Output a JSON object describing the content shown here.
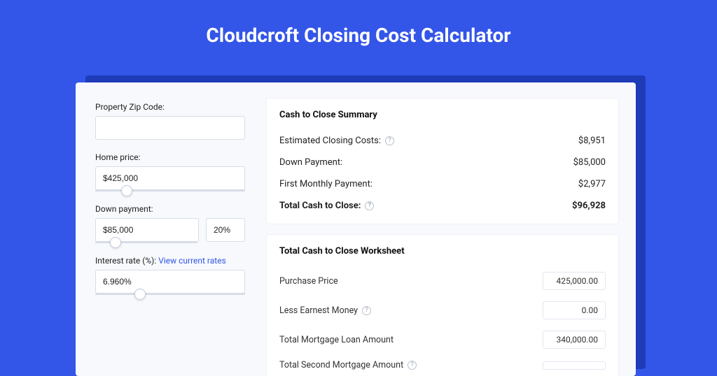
{
  "colors": {
    "page_bg": "#3355e8",
    "card_bg": "#f7f9fc",
    "shadow_bg": "#1e3bb8",
    "panel_bg": "#ffffff",
    "border": "#d7dde6",
    "text": "#222222",
    "link": "#3355e8"
  },
  "title": "Cloudcroft Closing Cost Calculator",
  "inputs": {
    "zip_label": "Property Zip Code:",
    "zip_value": "",
    "home_price_label": "Home price:",
    "home_price_value": "$425,000",
    "home_price_slider_percent": 21,
    "down_payment_label": "Down payment:",
    "down_payment_value": "$85,000",
    "down_payment_pct": "20%",
    "down_payment_slider_percent": 20,
    "interest_label": "Interest rate (%):",
    "interest_link": "View current rates",
    "interest_value": "6.960%",
    "interest_slider_percent": 30
  },
  "summary": {
    "title": "Cash to Close Summary",
    "rows": [
      {
        "label": "Estimated Closing Costs:",
        "help": true,
        "value": "$8,951",
        "bold": false
      },
      {
        "label": "Down Payment:",
        "help": false,
        "value": "$85,000",
        "bold": false
      },
      {
        "label": "First Monthly Payment:",
        "help": false,
        "value": "$2,977",
        "bold": false
      },
      {
        "label": "Total Cash to Close:",
        "help": true,
        "value": "$96,928",
        "bold": true
      }
    ]
  },
  "worksheet": {
    "title": "Total Cash to Close Worksheet",
    "rows": [
      {
        "label": "Purchase Price",
        "help": false,
        "value": "425,000.00"
      },
      {
        "label": "Less Earnest Money",
        "help": true,
        "value": "0.00"
      },
      {
        "label": "Total Mortgage Loan Amount",
        "help": false,
        "value": "340,000.00"
      },
      {
        "label": "Total Second Mortgage Amount",
        "help": true,
        "value": ""
      }
    ]
  }
}
